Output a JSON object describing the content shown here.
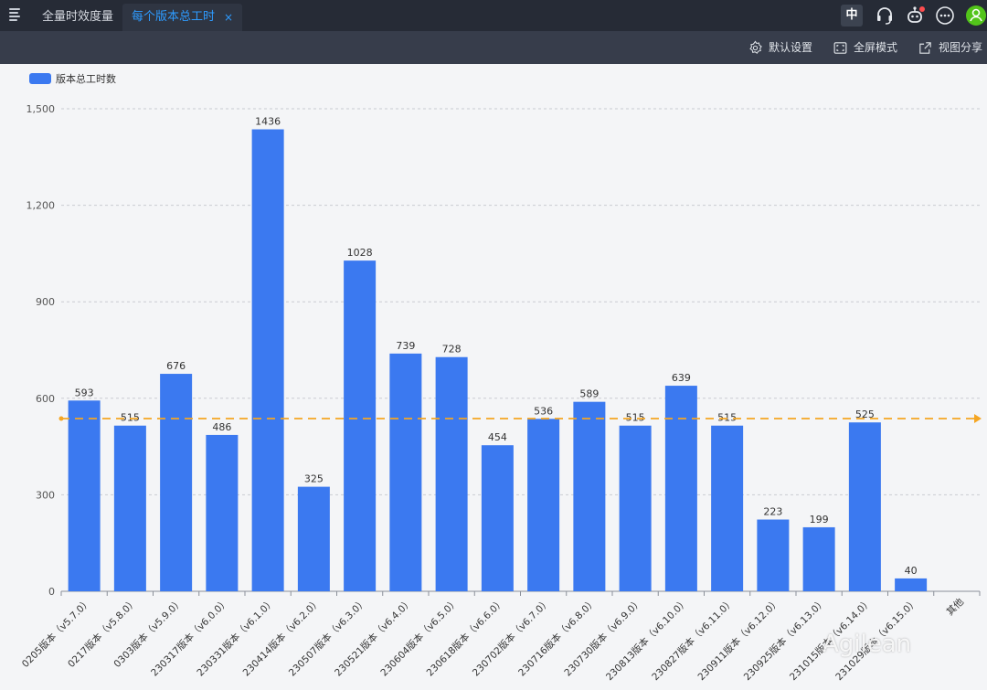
{
  "topbar": {
    "tabs": [
      {
        "label": "全量时效度量"
      },
      {
        "label": "每个版本总工时"
      }
    ],
    "close_glyph": "×",
    "lang_label": "中",
    "icons": [
      "menu-icon",
      "headset-icon",
      "robot-icon",
      "more-icon",
      "user-icon"
    ],
    "notification_dot_color": "#ff4d4f"
  },
  "toolbar": {
    "default_settings": "默认设置",
    "fullscreen": "全屏模式",
    "share_view": "视图分享"
  },
  "watermark": {
    "text": "Agilean"
  },
  "colors": {
    "bar": "#3b79f0",
    "avg_line": "#f5a623",
    "grid": "#c9ccd2"
  },
  "chart_data": {
    "type": "bar",
    "legend": [
      "版本总工时数"
    ],
    "legend_position": "top-left",
    "categories": [
      "0205版本（v5.7.0）",
      "0217版本（v5.8.0）",
      "0303版本（v5.9.0）",
      "230317版本（v6.0.0）",
      "230331版本（v6.1.0）",
      "230414版本（v6.2.0）",
      "230507版本（v6.3.0）",
      "230521版本（v6.4.0）",
      "230604版本（v6.5.0）",
      "230618版本（v6.6.0）",
      "230702版本（v6.7.0）",
      "230716版本（v6.8.0）",
      "230730版本（v6.9.0）",
      "230813版本（v6.10.0）",
      "230827版本（v6.11.0）",
      "230911版本（v6.12.0）",
      "230925版本（v6.13.0）",
      "231015版本（v6.14.0）",
      "231029版本（v6.15.0）",
      "其他"
    ],
    "series": [
      {
        "name": "版本总工时数",
        "values": [
          593,
          515,
          676,
          486,
          1436,
          325,
          1028,
          739,
          728,
          454,
          536,
          589,
          515,
          639,
          515,
          223,
          199,
          525,
          40,
          0
        ]
      }
    ],
    "data_labels": [
      "593",
      "515",
      "676",
      "486",
      "1436",
      "325",
      "1028",
      "739",
      "728",
      "454",
      "536",
      "589",
      "515",
      "639",
      "515",
      "223",
      "199",
      "525",
      "40",
      ""
    ],
    "y_ticks": [
      0,
      300,
      600,
      900,
      1200,
      1500
    ],
    "y_tick_labels": [
      "0",
      "300",
      "600",
      "900",
      "1,200",
      "1,500"
    ],
    "ylim": [
      0,
      1500
    ],
    "average_line": 537,
    "grid": true
  }
}
